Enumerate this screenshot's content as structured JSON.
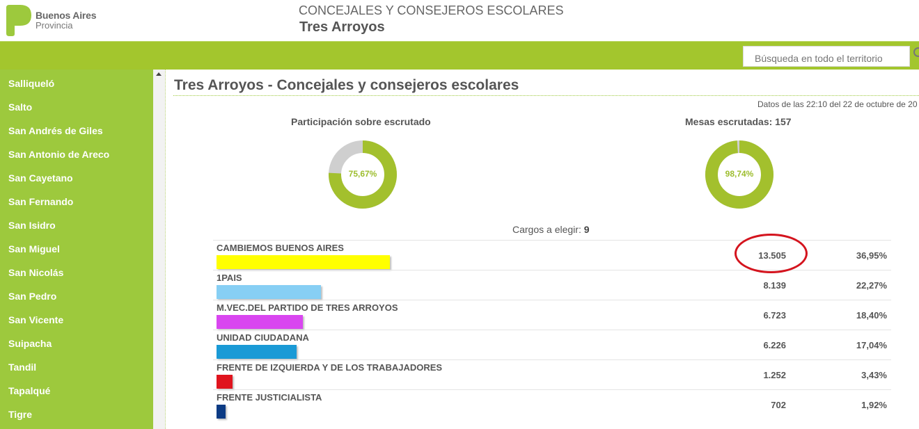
{
  "header": {
    "logo_line1": "Buenos Aires",
    "logo_line2": "Provincia",
    "title": "CONCEJALES Y CONSEJEROS ESCOLARES",
    "subtitle": "Tres Arroyos"
  },
  "search": {
    "placeholder": "Búsqueda en todo el territorio"
  },
  "sidebar": {
    "items": [
      {
        "label": "Salliqueló"
      },
      {
        "label": "Salto"
      },
      {
        "label": "San Andrés de Giles"
      },
      {
        "label": "San Antonio de Areco"
      },
      {
        "label": "San Cayetano"
      },
      {
        "label": "San Fernando"
      },
      {
        "label": "San Isidro"
      },
      {
        "label": "San Miguel"
      },
      {
        "label": "San Nicolás"
      },
      {
        "label": "San Pedro"
      },
      {
        "label": "San Vicente"
      },
      {
        "label": "Suipacha"
      },
      {
        "label": "Tandil"
      },
      {
        "label": "Tapalqué"
      },
      {
        "label": "Tigre"
      }
    ]
  },
  "main": {
    "title": "Tres Arroyos - Concejales y consejeros escolares",
    "datos": "Datos de las 22:10 del 22 de octubre de 20",
    "participacion": {
      "label": "Participación sobre escrutado",
      "value_text": "75,67%",
      "fraction": 0.7567
    },
    "mesas": {
      "label": "Mesas escrutadas: 157",
      "value_text": "98,74%",
      "fraction": 0.9874
    },
    "cargos_label": "Cargos a elegir: ",
    "cargos_value": "9"
  },
  "colors": {
    "accent": "#a3c62d",
    "donut_fill": "#a3c02d",
    "donut_rest": "#cfcfcf",
    "highlight": "#d4141e"
  },
  "results": [
    {
      "name": "CAMBIEMOS BUENOS AIRES",
      "votes": "13.505",
      "pct": "36,95%",
      "share": 36.95,
      "color": "#ffff00"
    },
    {
      "name": "1PAIS",
      "votes": "8.139",
      "pct": "22,27%",
      "share": 22.27,
      "color": "#87cff4"
    },
    {
      "name": "M.VEC.DEL PARTIDO DE TRES ARROYOS",
      "votes": "6.723",
      "pct": "18,40%",
      "share": 18.4,
      "color": "#d946f0"
    },
    {
      "name": "UNIDAD CIUDADANA",
      "votes": "6.226",
      "pct": "17,04%",
      "share": 17.04,
      "color": "#1a9ad6"
    },
    {
      "name": "FRENTE DE IZQUIERDA Y DE LOS TRABAJADORES",
      "votes": "1.252",
      "pct": "3,43%",
      "share": 3.43,
      "color": "#e0141e"
    },
    {
      "name": "FRENTE JUSTICIALISTA",
      "votes": "702",
      "pct": "1,92%",
      "share": 1.92,
      "color": "#0c3b84"
    }
  ]
}
